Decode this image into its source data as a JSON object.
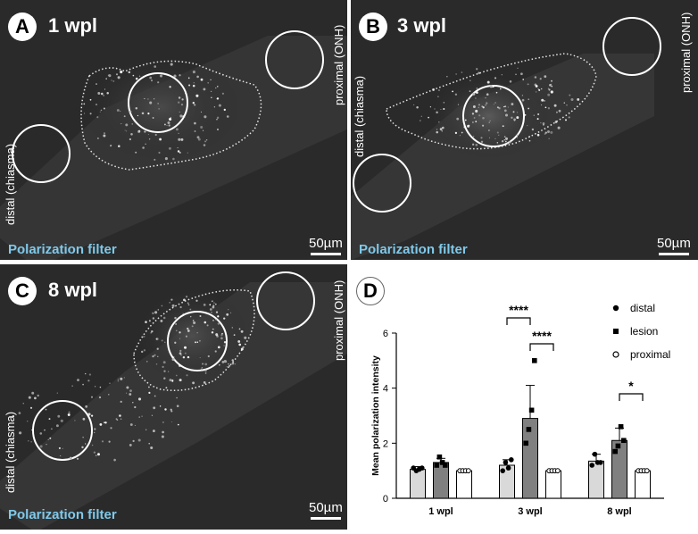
{
  "panels": {
    "A": {
      "letter": "A",
      "timepoint": "1 wpl",
      "filter": "Polarization filter",
      "scale": "50µm",
      "distal": "distal (chiasma)",
      "proximal": "proximal (ONH)"
    },
    "B": {
      "letter": "B",
      "timepoint": "3 wpl",
      "filter": "Polarization filter",
      "scale": "50µm",
      "distal": "distal (chiasma)",
      "proximal": "proximal (ONH)"
    },
    "C": {
      "letter": "C",
      "timepoint": "8 wpl",
      "filter": "Polarization filter",
      "scale": "50µm",
      "distal": "distal (chiasma)",
      "proximal": "proximal (ONH)"
    }
  },
  "chart_panel": {
    "letter": "D"
  },
  "chart_data": {
    "type": "bar",
    "title": "",
    "ylabel": "Mean polarization intensity",
    "xlabel": "",
    "ylim": [
      0,
      6
    ],
    "yticks": [
      "0",
      "2",
      "4",
      "6"
    ],
    "categories": [
      "1 wpl",
      "3 wpl",
      "8 wpl"
    ],
    "series": [
      {
        "name": "distal",
        "marker": "circle",
        "color": "#d9d9d9",
        "values": [
          1.05,
          1.2,
          1.35
        ],
        "errors": [
          0.1,
          0.2,
          0.25
        ],
        "points": [
          [
            1.1,
            1.0,
            1.05,
            1.1
          ],
          [
            1.0,
            1.3,
            1.1,
            1.4
          ],
          [
            1.2,
            1.6,
            1.3,
            1.3
          ]
        ]
      },
      {
        "name": "lesion",
        "marker": "square",
        "color": "#808080",
        "values": [
          1.3,
          2.9,
          2.1
        ],
        "errors": [
          0.15,
          1.2,
          0.45
        ],
        "points": [
          [
            1.2,
            1.5,
            1.3,
            1.2
          ],
          [
            2.0,
            2.5,
            3.2,
            5.0
          ],
          [
            1.7,
            1.9,
            2.6,
            2.1
          ]
        ]
      },
      {
        "name": "proximal",
        "marker": "open-circle",
        "color": "#ffffff",
        "values": [
          1.0,
          1.0,
          1.0
        ],
        "errors": [
          0.02,
          0.02,
          0.02
        ],
        "points": [
          [
            1.0,
            1.0,
            1.0,
            1.0
          ],
          [
            1.0,
            1.0,
            1.0,
            1.0
          ],
          [
            1.0,
            1.0,
            1.0,
            1.0
          ]
        ]
      }
    ],
    "significance": [
      {
        "label": "****",
        "category": "3 wpl",
        "from": "distal",
        "to": "lesion"
      },
      {
        "label": "****",
        "category": "3 wpl",
        "from": "lesion",
        "to": "proximal"
      },
      {
        "label": "*",
        "category": "8 wpl",
        "from": "lesion",
        "to": "proximal"
      }
    ],
    "legend": {
      "position": "top-right"
    }
  }
}
